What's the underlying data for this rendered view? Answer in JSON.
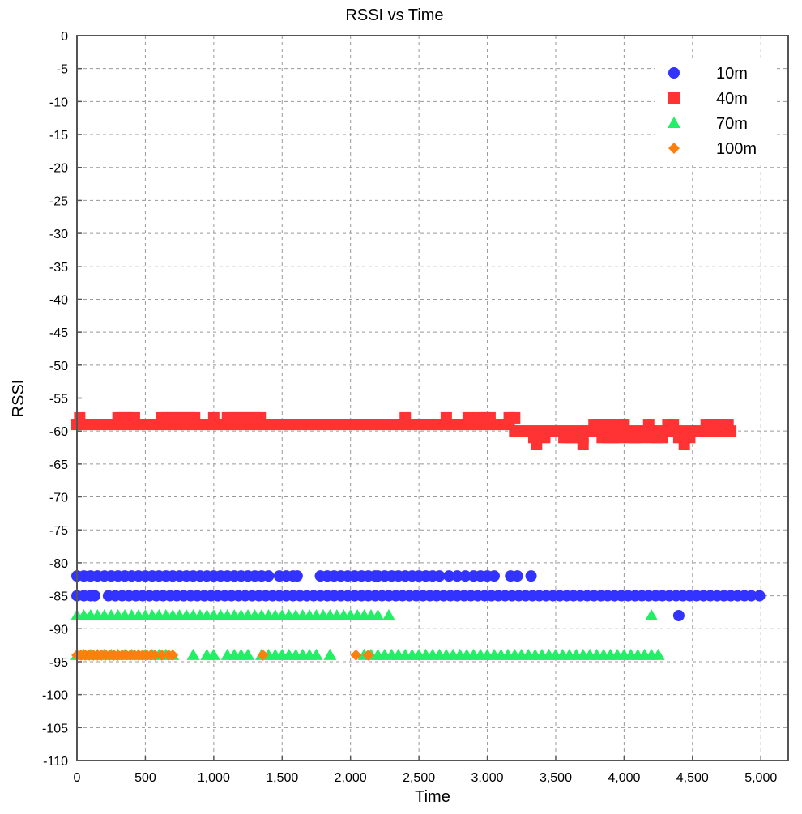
{
  "chart_data": {
    "type": "scatter",
    "title": "RSSI vs Time",
    "xlabel": "Time",
    "ylabel": "RSSI",
    "xlim": [
      0,
      5200
    ],
    "ylim": [
      -110,
      0
    ],
    "x_ticks": [
      0,
      500,
      1000,
      1500,
      2000,
      2500,
      3000,
      3500,
      4000,
      4500,
      5000
    ],
    "x_tick_labels": [
      "0",
      "500",
      "1,000",
      "1,500",
      "2,000",
      "2,500",
      "3,000",
      "3,500",
      "4,000",
      "4,500",
      "5,000"
    ],
    "y_ticks": [
      0,
      -5,
      -10,
      -15,
      -20,
      -25,
      -30,
      -35,
      -40,
      -45,
      -50,
      -55,
      -60,
      -65,
      -70,
      -75,
      -80,
      -85,
      -90,
      -95,
      -100,
      -105,
      -110
    ],
    "y_tick_labels": [
      "0",
      "-5",
      "-10",
      "-15",
      "-20",
      "-25",
      "-30",
      "-35",
      "-40",
      "-45",
      "-50",
      "-55",
      "-60",
      "-65",
      "-70",
      "-75",
      "-80",
      "-85",
      "-90",
      "-95",
      "-100",
      "-105",
      "-110"
    ],
    "grid": true,
    "legend_position": "top-right",
    "series": [
      {
        "name": "10m",
        "marker": "circle",
        "color": "#3333ff",
        "x": [
          0,
          50,
          100,
          150,
          200,
          250,
          300,
          350,
          400,
          450,
          500,
          550,
          600,
          650,
          700,
          750,
          800,
          850,
          900,
          950,
          1000,
          1050,
          1100,
          1150,
          1200,
          1250,
          1300,
          1350,
          1400,
          1480,
          1530,
          1580,
          1610,
          1780,
          1830,
          1880,
          1930,
          1980,
          2030,
          2080,
          2130,
          2180,
          2200,
          2250,
          2300,
          2350,
          2400,
          2450,
          2500,
          2550,
          2600,
          2650,
          2720,
          2780,
          2840,
          2900,
          2950,
          3000,
          3050,
          3170,
          3220,
          3320,
          0,
          50,
          100,
          130,
          230,
          280,
          330,
          380,
          430,
          480,
          530,
          580,
          630,
          680,
          730,
          780,
          830,
          880,
          930,
          980,
          1030,
          1080,
          1130,
          1180,
          1230,
          1280,
          1330,
          1380,
          1430,
          1480,
          1530,
          1580,
          1630,
          1680,
          1730,
          1780,
          1830,
          1880,
          1930,
          1980,
          2030,
          2080,
          2130,
          2180,
          2230,
          2280,
          2330,
          2380,
          2430,
          2480,
          2530,
          2580,
          2630,
          2680,
          2730,
          2780,
          2830,
          2880,
          2930,
          2980,
          3030,
          3080,
          3130,
          3180,
          3230,
          3280,
          3330,
          3380,
          3430,
          3480,
          3530,
          3580,
          3630,
          3680,
          3730,
          3780,
          3830,
          3880,
          3930,
          3980,
          4030,
          4080,
          4130,
          4180,
          4230,
          4280,
          4330,
          4380,
          4430,
          4480,
          4530,
          4580,
          4630,
          4680,
          4730,
          4780,
          4830,
          4880,
          4930,
          4990,
          4400
        ],
        "y": [
          -82,
          -82,
          -82,
          -82,
          -82,
          -82,
          -82,
          -82,
          -82,
          -82,
          -82,
          -82,
          -82,
          -82,
          -82,
          -82,
          -82,
          -82,
          -82,
          -82,
          -82,
          -82,
          -82,
          -82,
          -82,
          -82,
          -82,
          -82,
          -82,
          -82,
          -82,
          -82,
          -82,
          -82,
          -82,
          -82,
          -82,
          -82,
          -82,
          -82,
          -82,
          -82,
          -82,
          -82,
          -82,
          -82,
          -82,
          -82,
          -82,
          -82,
          -82,
          -82,
          -82,
          -82,
          -82,
          -82,
          -82,
          -82,
          -82,
          -82,
          -82,
          -82,
          -85,
          -85,
          -85,
          -85,
          -85,
          -85,
          -85,
          -85,
          -85,
          -85,
          -85,
          -85,
          -85,
          -85,
          -85,
          -85,
          -85,
          -85,
          -85,
          -85,
          -85,
          -85,
          -85,
          -85,
          -85,
          -85,
          -85,
          -85,
          -85,
          -85,
          -85,
          -85,
          -85,
          -85,
          -85,
          -85,
          -85,
          -85,
          -85,
          -85,
          -85,
          -85,
          -85,
          -85,
          -85,
          -85,
          -85,
          -85,
          -85,
          -85,
          -85,
          -85,
          -85,
          -85,
          -85,
          -85,
          -85,
          -85,
          -85,
          -85,
          -85,
          -85,
          -85,
          -85,
          -85,
          -85,
          -85,
          -85,
          -85,
          -85,
          -85,
          -85,
          -85,
          -85,
          -85,
          -85,
          -85,
          -85,
          -85,
          -85,
          -85,
          -85,
          -85,
          -85,
          -85,
          -85,
          -85,
          -85,
          -85,
          -85,
          -85,
          -85,
          -85,
          -85,
          -85,
          -85,
          -85,
          -85,
          -85,
          -85,
          -88
        ]
      },
      {
        "name": "40m",
        "marker": "square",
        "color": "#ff3333",
        "x": [
          0,
          40,
          80,
          120,
          160,
          200,
          240,
          280,
          320,
          360,
          400,
          440,
          480,
          520,
          560,
          600,
          640,
          680,
          720,
          760,
          800,
          840,
          880,
          920,
          960,
          1000,
          1040,
          1080,
          1120,
          1160,
          1200,
          1240,
          1280,
          1320,
          1360,
          1400,
          1440,
          1480,
          1520,
          1560,
          1600,
          1640,
          1680,
          1720,
          1760,
          1800,
          1840,
          1880,
          1920,
          1960,
          2000,
          2040,
          2080,
          2120,
          2160,
          2200,
          2240,
          2280,
          2320,
          2360,
          2400,
          2440,
          2480,
          2520,
          2560,
          2600,
          2640,
          2680,
          2720,
          2760,
          2800,
          2840,
          2880,
          2920,
          2960,
          3000,
          3040,
          3080,
          3120,
          3160,
          3200,
          3240,
          3280,
          3320,
          3360,
          3400,
          3440,
          3480,
          3520,
          3560,
          3600,
          3640,
          3680,
          3720,
          3760,
          3800,
          3840,
          3880,
          3920,
          3960,
          4000,
          4040,
          4080,
          4120,
          4160,
          4200,
          4240,
          4280,
          4320,
          4360,
          4400,
          4440,
          4480,
          4520,
          4560,
          4600,
          4640,
          4680,
          4720,
          4760,
          4780,
          20,
          300,
          340,
          380,
          420,
          620,
          660,
          700,
          740,
          780,
          820,
          860,
          1000,
          1100,
          1140,
          1180,
          1220,
          1260,
          1300,
          1340,
          2400,
          2700,
          2860,
          2940,
          2980,
          3020,
          3160,
          3200,
          3780,
          3820,
          3860,
          3900,
          3960,
          4000,
          4180,
          4320,
          4360,
          4600,
          4640,
          4680,
          4720,
          4760,
          3340,
          3420,
          3560,
          3600,
          3640,
          3680,
          3700,
          3840,
          3880,
          3920,
          3960,
          4040,
          4080,
          4120,
          4200,
          4240,
          4280,
          4400,
          4480,
          3360,
          3700,
          4440
        ],
        "y": [
          -59,
          -59,
          -59,
          -59,
          -59,
          -59,
          -59,
          -59,
          -59,
          -59,
          -59,
          -59,
          -59,
          -59,
          -59,
          -59,
          -59,
          -59,
          -59,
          -59,
          -59,
          -59,
          -59,
          -59,
          -59,
          -59,
          -59,
          -59,
          -59,
          -59,
          -59,
          -59,
          -59,
          -59,
          -59,
          -59,
          -59,
          -59,
          -59,
          -59,
          -59,
          -59,
          -59,
          -59,
          -59,
          -59,
          -59,
          -59,
          -59,
          -59,
          -59,
          -59,
          -59,
          -59,
          -59,
          -59,
          -59,
          -59,
          -59,
          -59,
          -59,
          -59,
          -59,
          -59,
          -59,
          -59,
          -59,
          -59,
          -59,
          -59,
          -59,
          -59,
          -59,
          -59,
          -59,
          -59,
          -59,
          -59,
          -59,
          -59,
          -60,
          -60,
          -60,
          -60,
          -60,
          -60,
          -60,
          -60,
          -60,
          -60,
          -60,
          -60,
          -60,
          -60,
          -60,
          -60,
          -60,
          -60,
          -60,
          -60,
          -60,
          -60,
          -60,
          -60,
          -60,
          -60,
          -60,
          -60,
          -60,
          -60,
          -60,
          -60,
          -60,
          -60,
          -60,
          -60,
          -60,
          -60,
          -60,
          -60,
          -60,
          -58,
          -58,
          -58,
          -58,
          -58,
          -58,
          -58,
          -58,
          -58,
          -58,
          -58,
          -58,
          -58,
          -58,
          -58,
          -58,
          -58,
          -58,
          -58,
          -58,
          -58,
          -58,
          -58,
          -58,
          -58,
          -58,
          -58,
          -58,
          -59,
          -59,
          -59,
          -59,
          -59,
          -59,
          -59,
          -59,
          -59,
          -59,
          -59,
          -59,
          -59,
          -59,
          -61,
          -61,
          -61,
          -61,
          -61,
          -61,
          -61,
          -61,
          -61,
          -61,
          -61,
          -61,
          -61,
          -61,
          -61,
          -61,
          -61,
          -61,
          -61,
          -62,
          -62,
          -62
        ]
      },
      {
        "name": "70m",
        "marker": "triangle",
        "color": "#22ee66",
        "x": [
          0,
          50,
          100,
          150,
          200,
          250,
          300,
          350,
          400,
          450,
          500,
          550,
          600,
          650,
          700,
          750,
          800,
          850,
          900,
          950,
          1000,
          1050,
          1100,
          1150,
          1200,
          1250,
          1300,
          1350,
          1400,
          1450,
          1500,
          1550,
          1600,
          1650,
          1700,
          1750,
          1800,
          1850,
          1900,
          1950,
          2000,
          2050,
          2100,
          2150,
          2200,
          2280,
          4200,
          0,
          50,
          100,
          150,
          200,
          250,
          300,
          350,
          400,
          450,
          500,
          550,
          600,
          650,
          700,
          850,
          950,
          1000,
          1100,
          1150,
          1200,
          1250,
          1350,
          1400,
          1450,
          1500,
          1550,
          1600,
          1650,
          1700,
          1750,
          1850,
          2100,
          2150,
          2200,
          2250,
          2300,
          2350,
          2400,
          2450,
          2500,
          2550,
          2600,
          2650,
          2700,
          2750,
          2800,
          2850,
          2900,
          2950,
          3000,
          3050,
          3100,
          3150,
          3200,
          3250,
          3300,
          3350,
          3400,
          3450,
          3500,
          3550,
          3600,
          3650,
          3700,
          3750,
          3800,
          3850,
          3900,
          3950,
          4000,
          4050,
          4100,
          4150,
          4200,
          4250
        ],
        "y": [
          -88,
          -88,
          -88,
          -88,
          -88,
          -88,
          -88,
          -88,
          -88,
          -88,
          -88,
          -88,
          -88,
          -88,
          -88,
          -88,
          -88,
          -88,
          -88,
          -88,
          -88,
          -88,
          -88,
          -88,
          -88,
          -88,
          -88,
          -88,
          -88,
          -88,
          -88,
          -88,
          -88,
          -88,
          -88,
          -88,
          -88,
          -88,
          -88,
          -88,
          -88,
          -88,
          -88,
          -88,
          -88,
          -88,
          -88,
          -94,
          -94,
          -94,
          -94,
          -94,
          -94,
          -94,
          -94,
          -94,
          -94,
          -94,
          -94,
          -94,
          -94,
          -94,
          -94,
          -94,
          -94,
          -94,
          -94,
          -94,
          -94,
          -94,
          -94,
          -94,
          -94,
          -94,
          -94,
          -94,
          -94,
          -94,
          -94,
          -94,
          -94,
          -94,
          -94,
          -94,
          -94,
          -94,
          -94,
          -94,
          -94,
          -94,
          -94,
          -94,
          -94,
          -94,
          -94,
          -94,
          -94,
          -94,
          -94,
          -94,
          -94,
          -94,
          -94,
          -94,
          -94,
          -94,
          -94,
          -94,
          -94,
          -94,
          -94,
          -94,
          -94,
          -94,
          -94,
          -94,
          -94,
          -94,
          -94,
          -94,
          -94,
          -94,
          -94
        ]
      },
      {
        "name": "100m",
        "marker": "diamond",
        "color": "#ff7f0e",
        "x": [
          0,
          30,
          60,
          90,
          120,
          150,
          180,
          210,
          240,
          270,
          300,
          330,
          360,
          390,
          420,
          450,
          480,
          510,
          540,
          570,
          620,
          670,
          700,
          1360,
          2040,
          2130
        ],
        "y": [
          -94,
          -94,
          -94,
          -94,
          -94,
          -94,
          -94,
          -94,
          -94,
          -94,
          -94,
          -94,
          -94,
          -94,
          -94,
          -94,
          -94,
          -94,
          -94,
          -94,
          -94,
          -94,
          -94,
          -94,
          -94,
          -94
        ]
      }
    ]
  }
}
